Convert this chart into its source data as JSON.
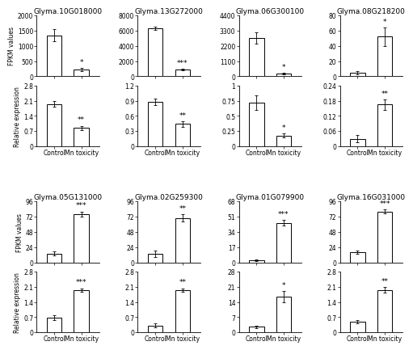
{
  "genes": [
    "Glyma.10G018000",
    "Glyma.13G272000",
    "Glyma.06G300100",
    "Glyma.08G218200",
    "Glyma.05G131000",
    "Glyma.02G259300",
    "Glyma.01G079900",
    "Glyma.16G031000"
  ],
  "fpkm": {
    "Glyma.10G018000": {
      "control": 1350,
      "mn": 230,
      "ctrl_err": 200,
      "mn_err": 50,
      "ylim": [
        0,
        2000
      ],
      "yticks": [
        0,
        500,
        1000,
        1500,
        2000
      ],
      "sig": "*"
    },
    "Glyma.13G272000": {
      "control": 6300,
      "mn": 900,
      "ctrl_err": 200,
      "mn_err": 80,
      "ylim": [
        0,
        8000
      ],
      "yticks": [
        0,
        2000,
        4000,
        6000,
        8000
      ],
      "sig": "***"
    },
    "Glyma.06G300100": {
      "control": 2750,
      "mn": 200,
      "ctrl_err": 400,
      "mn_err": 40,
      "ylim": [
        0,
        4400
      ],
      "yticks": [
        0,
        1100,
        2200,
        3300,
        4400
      ],
      "sig": "*"
    },
    "Glyma.08G218200": {
      "control": 5,
      "mn": 52,
      "ctrl_err": 2,
      "mn_err": 12,
      "ylim": [
        0,
        80
      ],
      "yticks": [
        0,
        20,
        40,
        60,
        80
      ],
      "sig": "*"
    },
    "Glyma.05G131000": {
      "control": 14,
      "mn": 76,
      "ctrl_err": 3,
      "mn_err": 4,
      "ylim": [
        0,
        96
      ],
      "yticks": [
        0,
        24,
        48,
        72,
        96
      ],
      "sig": "***"
    },
    "Glyma.02G259300": {
      "control": 13,
      "mn": 70,
      "ctrl_err": 5,
      "mn_err": 6,
      "ylim": [
        0,
        96
      ],
      "yticks": [
        0,
        24,
        48,
        72,
        96
      ],
      "sig": "**"
    },
    "Glyma.01G079900": {
      "control": 2,
      "mn": 44,
      "ctrl_err": 1,
      "mn_err": 3,
      "ylim": [
        0,
        68
      ],
      "yticks": [
        0,
        17,
        34,
        51,
        68
      ],
      "sig": "***"
    },
    "Glyma.16G031000": {
      "control": 16,
      "mn": 80,
      "ctrl_err": 3,
      "mn_err": 3,
      "ylim": [
        0,
        96
      ],
      "yticks": [
        0,
        24,
        48,
        72,
        96
      ],
      "sig": "***"
    }
  },
  "qpcr": {
    "Glyma.10G018000": {
      "control": 1.95,
      "mn": 0.85,
      "ctrl_err": 0.12,
      "mn_err": 0.1,
      "ylim": [
        0,
        2.8
      ],
      "yticks": [
        0,
        0.7,
        1.4,
        2.1,
        2.8
      ],
      "sig": "**"
    },
    "Glyma.13G272000": {
      "control": 0.88,
      "mn": 0.44,
      "ctrl_err": 0.06,
      "mn_err": 0.05,
      "ylim": [
        0,
        1.2
      ],
      "yticks": [
        0,
        0.3,
        0.6,
        0.9,
        1.2
      ],
      "sig": "**"
    },
    "Glyma.06G300100": {
      "control": 0.72,
      "mn": 0.18,
      "ctrl_err": 0.12,
      "mn_err": 0.03,
      "ylim": [
        0,
        1.0
      ],
      "yticks": [
        0,
        0.25,
        0.5,
        0.75,
        1.0
      ],
      "sig": "*"
    },
    "Glyma.08G218200": {
      "control": 0.03,
      "mn": 0.165,
      "ctrl_err": 0.015,
      "mn_err": 0.02,
      "ylim": [
        0,
        0.24
      ],
      "yticks": [
        0,
        0.06,
        0.12,
        0.18,
        0.24
      ],
      "sig": "**"
    },
    "Glyma.05G131000": {
      "control": 0.68,
      "mn": 1.95,
      "ctrl_err": 0.1,
      "mn_err": 0.08,
      "ylim": [
        0,
        2.8
      ],
      "yticks": [
        0,
        0.7,
        1.4,
        2.1,
        2.8
      ],
      "sig": "***"
    },
    "Glyma.02G259300": {
      "control": 0.32,
      "mn": 1.95,
      "ctrl_err": 0.1,
      "mn_err": 0.08,
      "ylim": [
        0,
        2.8
      ],
      "yticks": [
        0,
        0.7,
        1.4,
        2.1,
        2.8
      ],
      "sig": "**"
    },
    "Glyma.01G079900": {
      "control": 2.5,
      "mn": 16.5,
      "ctrl_err": 0.5,
      "mn_err": 2.5,
      "ylim": [
        0,
        28
      ],
      "yticks": [
        0,
        7,
        14,
        21,
        28
      ],
      "sig": "*"
    },
    "Glyma.16G031000": {
      "control": 0.5,
      "mn": 1.95,
      "ctrl_err": 0.08,
      "mn_err": 0.12,
      "ylim": [
        0,
        2.8
      ],
      "yticks": [
        0,
        0.7,
        1.4,
        2.1,
        2.8
      ],
      "sig": "**"
    }
  },
  "bar_width": 0.55,
  "bar_color": "white",
  "bar_edgecolor": "black",
  "fpkm_ylabel": "FPKM values",
  "qpcr_ylabel": "Relative expression",
  "title_fontsize": 6.5,
  "tick_fontsize": 5.5,
  "label_fontsize": 5.5,
  "sig_fontsize": 6.5,
  "xtick_fontsize": 5.5
}
